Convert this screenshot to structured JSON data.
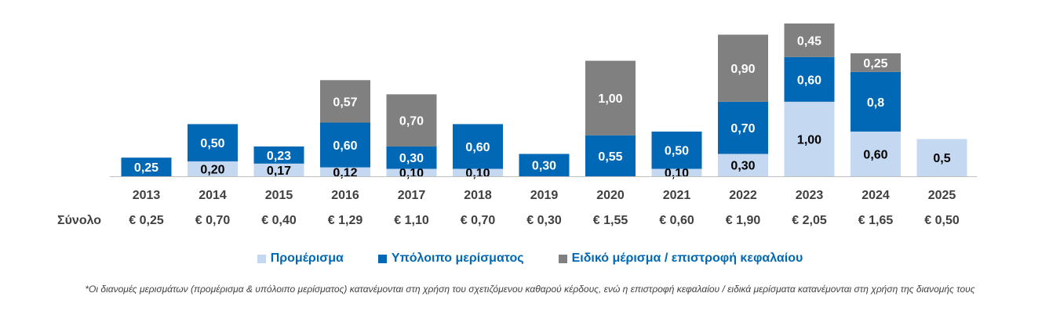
{
  "chart_data": {
    "type": "bar",
    "stacked": true,
    "categories": [
      "2013",
      "2014",
      "2015",
      "2016",
      "2017",
      "2018",
      "2019",
      "2020",
      "2021",
      "2022",
      "2023",
      "2024",
      "2025"
    ],
    "series": [
      {
        "name": "Προμέρισμα",
        "color": "#C5D8F1",
        "values": [
          0,
          0.2,
          0.17,
          0.12,
          0.1,
          0.1,
          0,
          0,
          0.1,
          0.3,
          1.0,
          0.6,
          0.5
        ],
        "labels": [
          "",
          "0,20",
          "0,17",
          "0,12",
          "0,10",
          "0,10",
          "",
          "",
          "0,10",
          "0,30",
          "1,00",
          "0,60",
          "0,5"
        ]
      },
      {
        "name": "Υπόλοιπο μερίσματος",
        "color": "#0068B5",
        "values": [
          0.25,
          0.5,
          0.23,
          0.6,
          0.3,
          0.6,
          0.3,
          0.55,
          0.5,
          0.7,
          0.6,
          0.8,
          0
        ],
        "labels": [
          "0,25",
          "0,50",
          "0,23",
          "0,60",
          "0,30",
          "0,60",
          "0,30",
          "0,55",
          "0,50",
          "0,70",
          "0,60",
          "0,8",
          ""
        ]
      },
      {
        "name": "Ειδικό μέρισμα / επιστροφή κεφαλαίου",
        "color": "#808080",
        "values": [
          0,
          0,
          0,
          0.57,
          0.7,
          0,
          0,
          1.0,
          0,
          0.9,
          0.45,
          0.25,
          0
        ],
        "labels": [
          "",
          "",
          "",
          "0,57",
          "0,70",
          "",
          "",
          "1,00",
          "",
          "0,90",
          "0,45",
          "0,25",
          ""
        ]
      }
    ],
    "totals_label": "Σύνολο",
    "totals": [
      "€ 0,25",
      "€ 0,70",
      "€ 0,40",
      "€ 1,29",
      "€ 1,10",
      "€ 0,70",
      "€ 0,30",
      "€ 1,55",
      "€ 0,60",
      "€ 1,90",
      "€ 2,05",
      "€ 1,65",
      "€ 0,50"
    ],
    "ylim": [
      0,
      2.05
    ],
    "grid": false,
    "legend_position": "bottom"
  },
  "footnote": "*Οι διανομές μερισμάτων (προμέρισμα & υπόλοιπο μερίσματος) κατανέμονται στη χρήση του σχετιζόμενου καθαρού κέρδους, ενώ η επιστροφή κεφαλαίου / ειδικά μερίσματα κατανέμονται στη χρήση της διανομής τους"
}
